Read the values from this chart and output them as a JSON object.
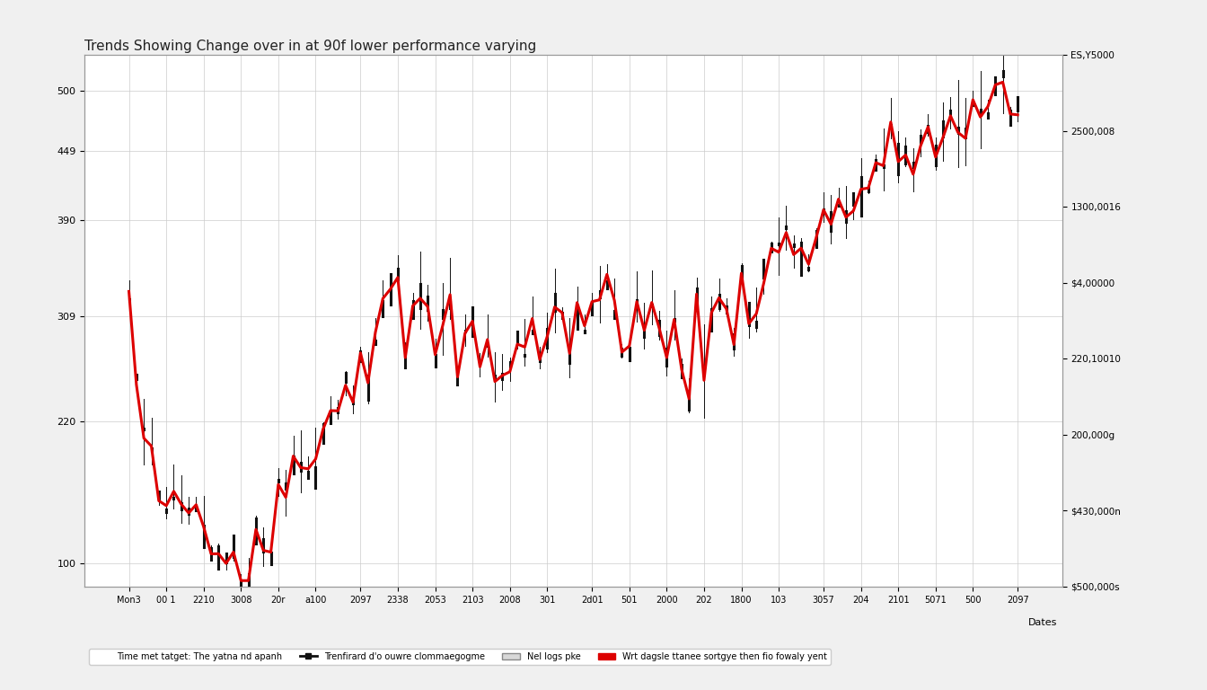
{
  "title": "Trends Showing Change over in at 90f lower performance varying",
  "xlabel": "Dates",
  "ylim_left": [
    80,
    530
  ],
  "background_color": "#f0f0f0",
  "plot_bg_color": "#ffffff",
  "grid_color": "#cccccc",
  "title_fontsize": 11,
  "legend_items": [
    "Time met tatget: The yatna nd apanh",
    "Trenfirard d'o ouwre clommaegogme",
    "Nel logs pke",
    "Wrt dagsle ttanee sortgye then fio fowaly yent"
  ],
  "x_labels": [
    "Mon3",
    "00 1",
    "2210",
    "3008",
    "20r",
    "a100",
    "2097",
    "2338",
    "2053",
    "2103",
    "2008",
    "301",
    "2d01",
    "501",
    "2000",
    "202",
    "1800",
    "103",
    "3057",
    "204",
    "2101",
    "5071",
    "500",
    "2097"
  ],
  "left_yticks": [
    100,
    220,
    309,
    390,
    449,
    500
  ],
  "left_yticklabels": [
    "100",
    "220",
    "309",
    "390",
    "449",
    "500"
  ],
  "right_yticklabels": [
    "$500,000s",
    "$430,000n",
    "200,000g",
    "220,10010",
    "$4,00000",
    "1300,0016",
    "2500,008",
    "ES,Y5000"
  ],
  "n_points": 120,
  "seed": 7,
  "candle_color": "#111111",
  "line_color": "#dd0000",
  "line_width": 2.2,
  "header_color": "#c8c8c8",
  "spine_color": "#999999"
}
